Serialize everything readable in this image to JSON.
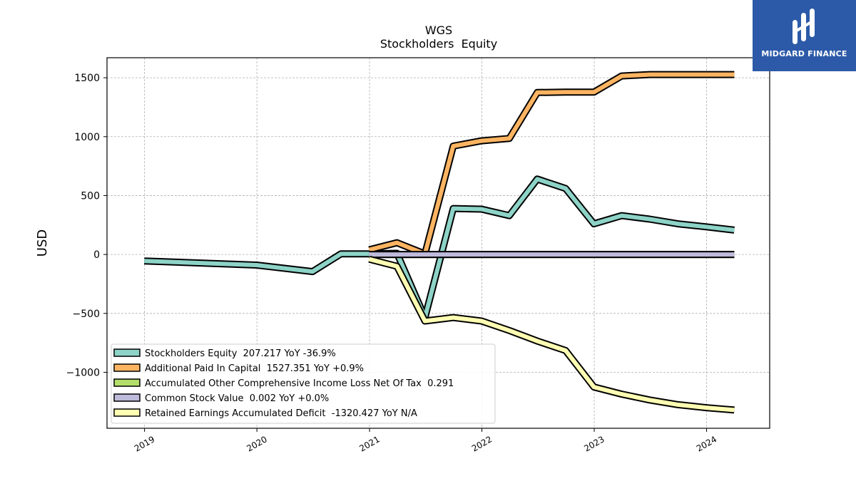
{
  "chart_data": {
    "type": "line",
    "title": "WGS",
    "subtitle": "Stockholders  Equity",
    "ylabel": "USD",
    "xlabel": "",
    "xlim": [
      "2018-09-01",
      "2024-07-24"
    ],
    "ylim": [
      -1475,
      1670
    ],
    "x_ticks": [
      "2019",
      "2020",
      "2021",
      "2022",
      "2023",
      "2024"
    ],
    "y_ticks": [
      -1000,
      -500,
      0,
      500,
      1000,
      1500
    ],
    "y_tick_labels": [
      "−1000",
      "−500",
      "0",
      "500",
      "1000",
      "1500"
    ],
    "grid": true,
    "legend_position": "lower-left",
    "series": [
      {
        "name": "Stockholders Equity",
        "legend_label": "Stockholders Equity  207.217 YoY -36.9%",
        "color": "#8dd3c7",
        "x": [
          "2018-12-31",
          "2019-12-31",
          "2020-06-30",
          "2020-09-30",
          "2020-12-31",
          "2021-03-31",
          "2021-06-30",
          "2021-09-30",
          "2021-12-31",
          "2022-03-31",
          "2022-06-30",
          "2022-09-30",
          "2022-12-31",
          "2023-03-31",
          "2023-06-30",
          "2023-09-30",
          "2023-12-31",
          "2024-03-31"
        ],
        "values": [
          -55,
          -90,
          -145,
          5,
          5,
          10,
          -535,
          390,
          385,
          330,
          640,
          560,
          260,
          330,
          300,
          260,
          235,
          207
        ]
      },
      {
        "name": "Additional Paid In Capital",
        "legend_label": "Additional Paid In Capital  1527.351 YoY +0.9%",
        "color": "#fdb462",
        "x": [
          "2020-12-31",
          "2021-03-31",
          "2021-06-30",
          "2021-09-30",
          "2021-12-31",
          "2022-03-31",
          "2022-06-30",
          "2022-09-30",
          "2022-12-31",
          "2023-03-31",
          "2023-06-30",
          "2023-09-30",
          "2023-12-31",
          "2024-03-31"
        ],
        "values": [
          40,
          100,
          5,
          920,
          965,
          985,
          1375,
          1378,
          1378,
          1515,
          1527,
          1527,
          1527,
          1527
        ]
      },
      {
        "name": "Accumulated Other Comprehensive Income Loss Net Of Tax",
        "legend_label": "Accumulated Other Comprehensive Income Loss Net Of Tax  0.291",
        "color": "#b3de69",
        "x": [
          "2020-12-31",
          "2024-03-31"
        ],
        "values": [
          0,
          0.291
        ]
      },
      {
        "name": "Common Stock Value",
        "legend_label": "Common Stock Value  0.002 YoY +0.0%",
        "color": "#bebada",
        "x": [
          "2020-12-31",
          "2024-03-31"
        ],
        "values": [
          0,
          0.002
        ]
      },
      {
        "name": "Retained Earnings Accumulated Deficit",
        "legend_label": "Retained Earnings Accumulated Deficit  -1320.427 YoY N/A",
        "color": "#ffffb3",
        "x": [
          "2020-12-31",
          "2021-03-31",
          "2021-06-30",
          "2021-09-30",
          "2021-12-31",
          "2022-03-31",
          "2022-06-30",
          "2022-09-30",
          "2022-12-31",
          "2023-03-31",
          "2023-06-30",
          "2023-09-30",
          "2023-12-31",
          "2024-03-31"
        ],
        "values": [
          -40,
          -100,
          -565,
          -535,
          -565,
          -645,
          -735,
          -815,
          -1125,
          -1185,
          -1235,
          -1275,
          -1300,
          -1320
        ]
      }
    ]
  },
  "logo": {
    "text": "MIDGARD FINANCE"
  }
}
